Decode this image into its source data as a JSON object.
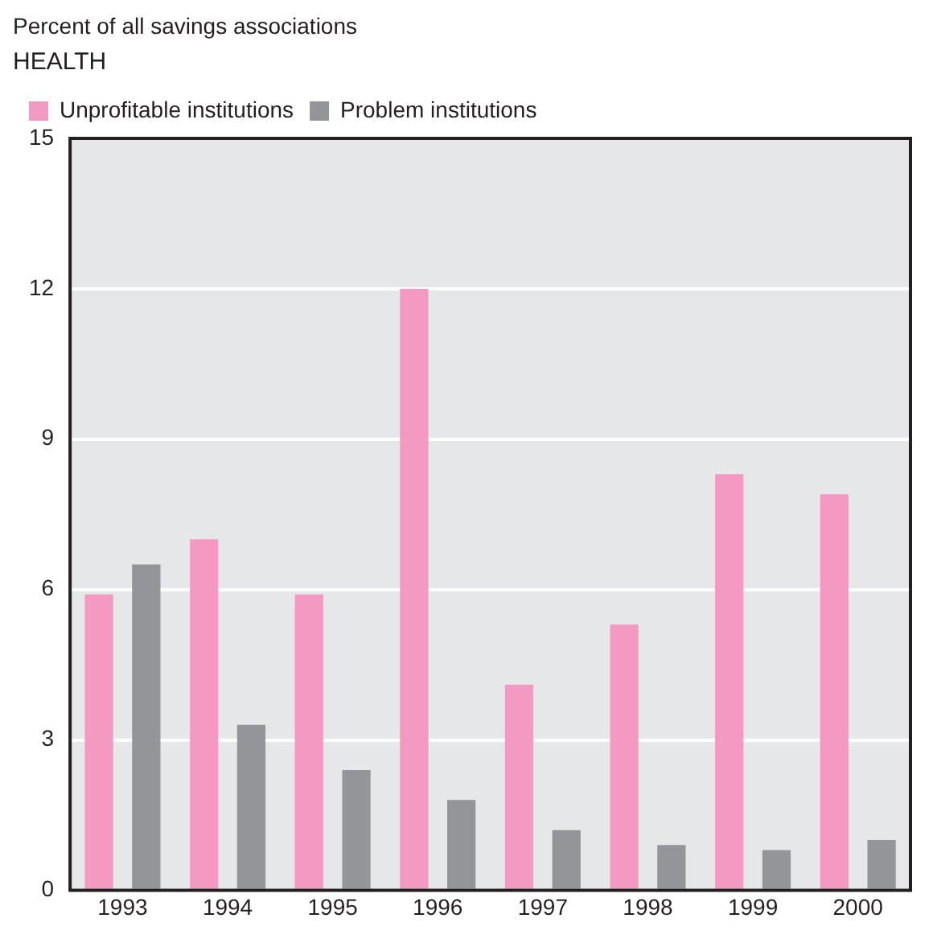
{
  "chart_data": {
    "type": "bar",
    "title": "HEALTH",
    "ylabel": "Percent of all savings associations",
    "categories": [
      "1993",
      "1994",
      "1995",
      "1996",
      "1997",
      "1998",
      "1999",
      "2000"
    ],
    "series": [
      {
        "name": "Unprofitable institutions",
        "color": "#f49ac2",
        "values": [
          5.9,
          7.0,
          5.9,
          12.0,
          4.1,
          5.3,
          8.3,
          7.9
        ]
      },
      {
        "name": "Problem institutions",
        "color": "#939598",
        "values": [
          6.5,
          3.3,
          2.4,
          1.8,
          1.2,
          0.9,
          0.8,
          1.0
        ]
      }
    ],
    "ylim": [
      0,
      15
    ],
    "yticks": [
      0,
      3,
      6,
      9,
      12,
      15
    ],
    "grid": "y",
    "legend": "top left"
  }
}
